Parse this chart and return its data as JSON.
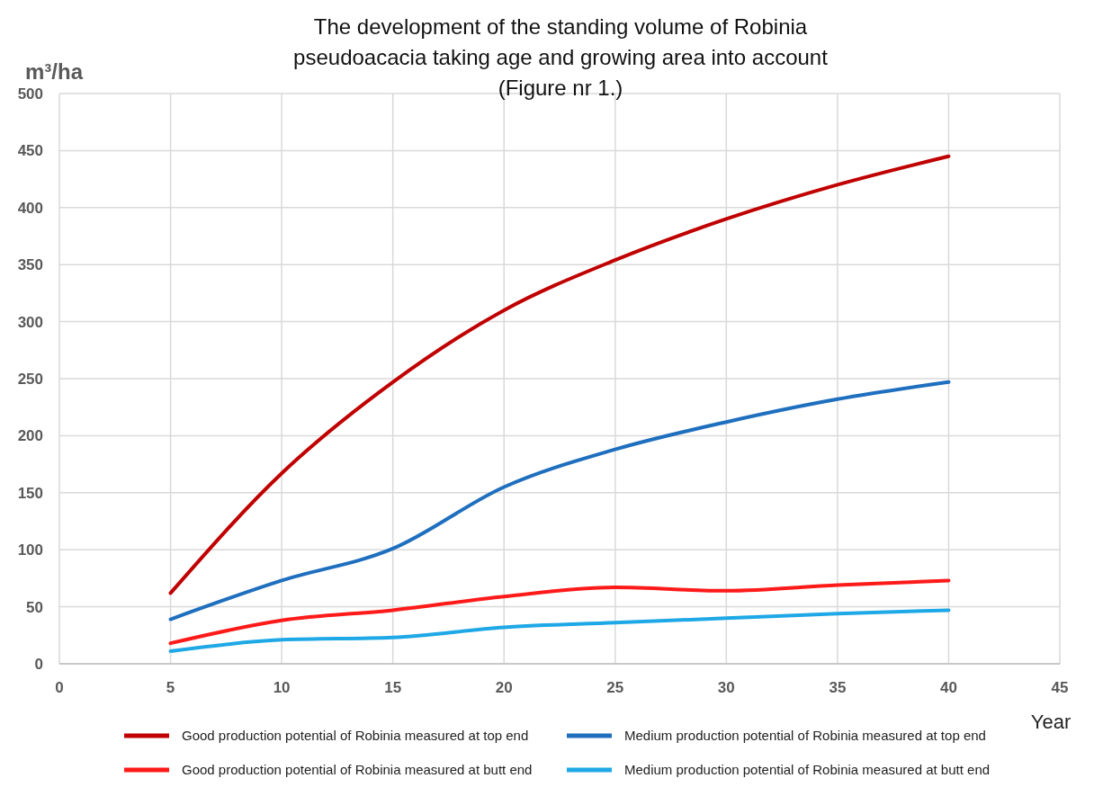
{
  "chart_data": {
    "type": "line",
    "title": "The development of the standing volume of Robinia\npseudoacacia taking age and growing area into account\n(Figure nr 1.)",
    "xlabel": "Year",
    "ylabel": "m³/ha",
    "x": [
      5,
      10,
      15,
      20,
      25,
      30,
      35,
      40
    ],
    "series": [
      {
        "name": "Good production potential of Robinia measured at top end",
        "color": "#c00000",
        "values": [
          62,
          167,
          247,
          310,
          354,
          390,
          420,
          445
        ]
      },
      {
        "name": "Medium production potential of Robinia measured at top end",
        "color": "#1f6fbf",
        "values": [
          39,
          73,
          101,
          155,
          188,
          212,
          232,
          247
        ]
      },
      {
        "name": "Good production potential of Robinia measured at butt end",
        "color": "#ff1a1a",
        "values": [
          18,
          38,
          47,
          59,
          67,
          64,
          69,
          73
        ]
      },
      {
        "name": "Medium production potential of Robinia measured at butt end",
        "color": "#1ea8e6",
        "values": [
          11,
          21,
          23,
          32,
          36,
          40,
          44,
          47
        ]
      }
    ],
    "xlim": [
      0,
      45
    ],
    "xticks": [
      0,
      5,
      10,
      15,
      20,
      25,
      30,
      35,
      40,
      45
    ],
    "ylim": [
      0,
      500
    ],
    "yticks": [
      0,
      50,
      100,
      150,
      200,
      250,
      300,
      350,
      400,
      450,
      500
    ],
    "grid": true,
    "legend": "bottom",
    "marker": "none",
    "line_style": "solid"
  }
}
